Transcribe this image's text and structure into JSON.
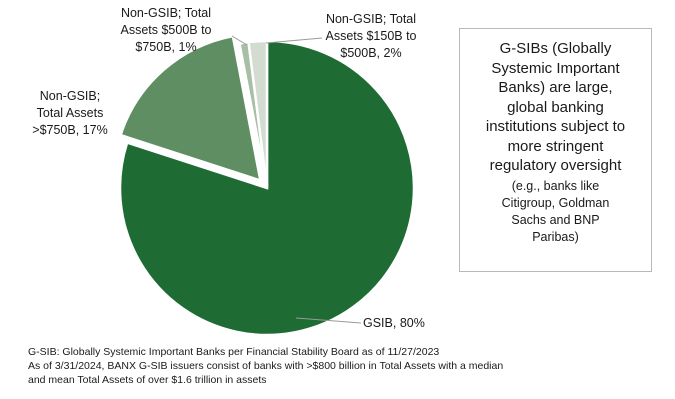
{
  "chart_data": {
    "type": "pie",
    "slices": [
      {
        "label_lines": [
          "GSIB, 80%"
        ],
        "category": "GSIB",
        "value": 80,
        "color": "#1f6b34"
      },
      {
        "label_lines": [
          "Non-GSIB;",
          "Total Assets",
          ">$750B, 17%"
        ],
        "category": "Non-GSIB; Total Assets >$750B",
        "value": 17,
        "color": "#5e8e62"
      },
      {
        "label_lines": [
          "Non-GSIB; Total",
          "Assets $500B to",
          "$750B, 1%"
        ],
        "category": "Non-GSIB; Total Assets $500B to $750B",
        "value": 1,
        "color": "#a6bfa5"
      },
      {
        "label_lines": [
          "Non-GSIB; Total",
          "Assets $150B to",
          "$500B, 2%"
        ],
        "category": "Non-GSIB; Total Assets $150B to $500B",
        "value": 2,
        "color": "#d2dcd0"
      }
    ]
  },
  "info_box": {
    "main_lines": [
      "G-SIBs (Globally",
      "Systemic Important",
      "Banks) are large,",
      "global banking",
      "institutions subject to",
      "more stringent",
      "regulatory oversight"
    ],
    "sub_lines": [
      "(e.g., banks like",
      "Citigroup, Goldman",
      "Sachs and BNP",
      "Paribas)"
    ]
  },
  "footnote": {
    "lines": [
      "G-SIB:  Globally Systemic Important Banks per Financial Stability Board as of 11/27/2023",
      "As of 3/31/2024, BANX G-SIB issuers consist of banks with >$800 billion in Total Assets with a median",
      "and mean Total Assets of over $1.6 trillion in assets"
    ]
  }
}
